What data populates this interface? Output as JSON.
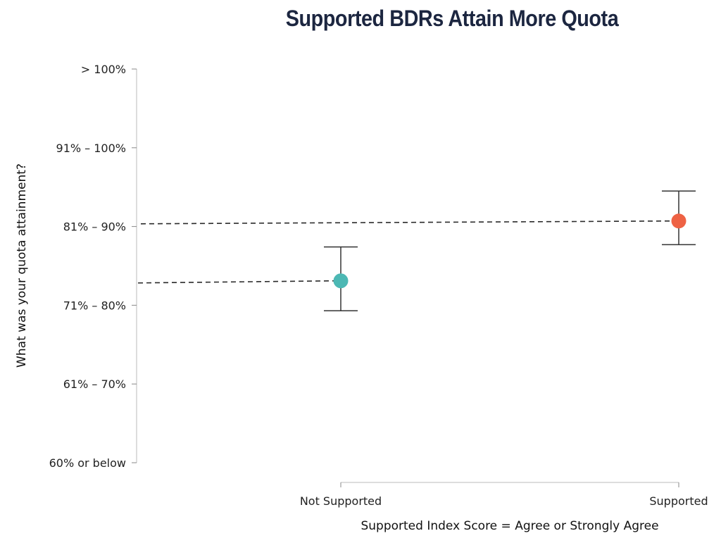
{
  "chart_data": {
    "type": "scatter",
    "title": "Supported BDRs Attain More Quota",
    "xlabel": "Supported Index Score = Agree or Strongly Agree",
    "ylabel": "What was your quota attainment?",
    "categories": [
      "Not Supported",
      "Supported"
    ],
    "y_ticks": [
      "60% or below",
      "61% – 70%",
      "71% – 80%",
      "81% – 90%",
      "91% – 100%",
      "> 100%"
    ],
    "ylim": [
      1,
      6
    ],
    "series": [
      {
        "points": [
          {
            "category": "Not Supported",
            "value": 3.31,
            "error_low": 2.93,
            "error_high": 3.74,
            "color": "#4cb8b4"
          },
          {
            "category": "Supported",
            "value": 4.07,
            "error_low": 3.77,
            "error_high": 4.45,
            "color": "#ee6244"
          }
        ]
      }
    ],
    "reference_lines": [
      {
        "category": "Not Supported",
        "value": 3.31,
        "style": "dashed"
      },
      {
        "category": "Supported",
        "value": 4.07,
        "style": "dashed"
      }
    ],
    "grid": false
  }
}
